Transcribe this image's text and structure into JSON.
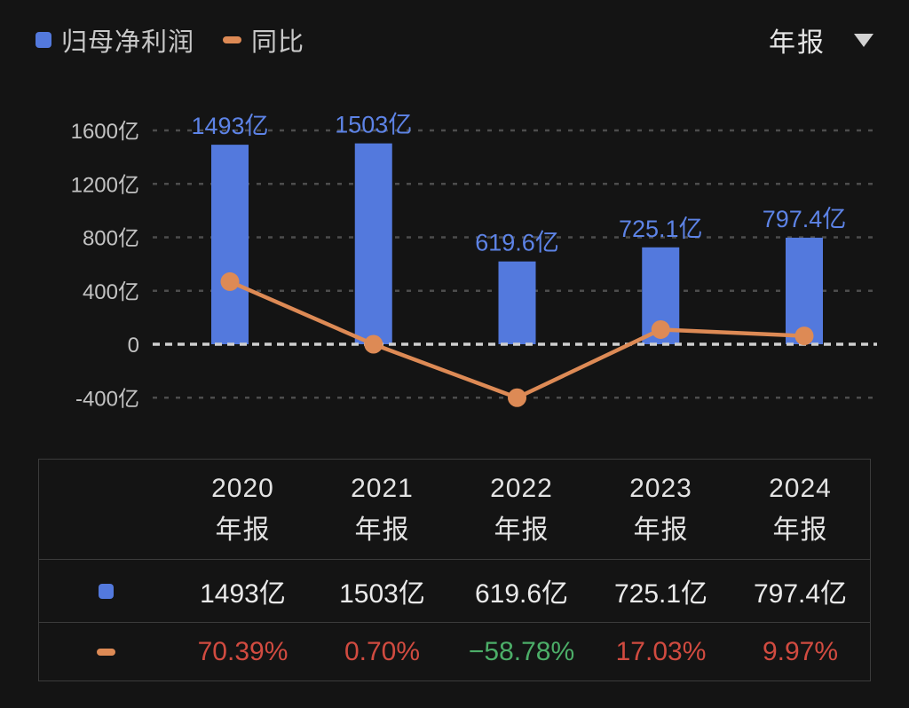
{
  "legend": {
    "items": [
      {
        "name": "归母净利润",
        "swatch": "blue-square"
      },
      {
        "name": "同比",
        "swatch": "orange-dash"
      }
    ]
  },
  "period_selector": {
    "label": "年报",
    "icon": "caret-down-icon"
  },
  "chart_data": {
    "type": "bar",
    "subtype": "bar+line combo",
    "categories": [
      "2020年报",
      "2021年报",
      "2022年报",
      "2023年报",
      "2024年报"
    ],
    "series": [
      {
        "name": "归母净利润",
        "type": "bar",
        "unit": "亿",
        "values": [
          1493,
          1503,
          619.6,
          725.1,
          797.4
        ],
        "labels": [
          "1493亿",
          "1503亿",
          "619.6亿",
          "725.1亿",
          "797.4亿"
        ],
        "color": "#5379dd",
        "label_color": "#5d83e6"
      },
      {
        "name": "同比",
        "type": "line",
        "unit": "%",
        "values": [
          70.39,
          0.7,
          -58.78,
          17.03,
          9.97
        ],
        "color": "#dd8a55"
      }
    ],
    "y_axis": {
      "side": "left",
      "ticks": [
        "1600亿",
        "1200亿",
        "800亿",
        "400亿",
        "0",
        "-400亿"
      ],
      "tick_values": [
        1600,
        1200,
        800,
        400,
        0,
        -400
      ],
      "ylim": [
        -400,
        1600
      ],
      "grid": true,
      "grid_style": "dashed"
    },
    "legend_position": "top-left",
    "title": ""
  },
  "table": {
    "columns": [
      {
        "year": "2020",
        "period": "年报"
      },
      {
        "year": "2021",
        "period": "年报"
      },
      {
        "year": "2022",
        "period": "年报"
      },
      {
        "year": "2023",
        "period": "年报"
      },
      {
        "year": "2024",
        "period": "年报"
      }
    ],
    "rows": [
      {
        "icon": "bar-series-swatch",
        "values": [
          "1493亿",
          "1503亿",
          "619.6亿",
          "725.1亿",
          "797.4亿"
        ],
        "value_colors": [
          "#eaeaea",
          "#eaeaea",
          "#eaeaea",
          "#eaeaea",
          "#eaeaea"
        ]
      },
      {
        "icon": "line-series-swatch",
        "values": [
          "70.39%",
          "0.70%",
          "−58.78%",
          "17.03%",
          "9.97%"
        ],
        "value_colors": [
          "#d14b40",
          "#d14b40",
          "#4cae68",
          "#d14b40",
          "#d14b40"
        ]
      }
    ]
  },
  "colors": {
    "background": "#141414",
    "bar_blue": "#5379dd",
    "bar_label_blue": "#5d83e6",
    "line_orange": "#dd8a55",
    "grid_line": "#4d4d4d",
    "zero_line": "#cfcfcf",
    "axis_text": "#c2c2c2",
    "negative_green": "#4cae68",
    "positive_red": "#d14b40",
    "table_border": "#3c3c3c"
  }
}
